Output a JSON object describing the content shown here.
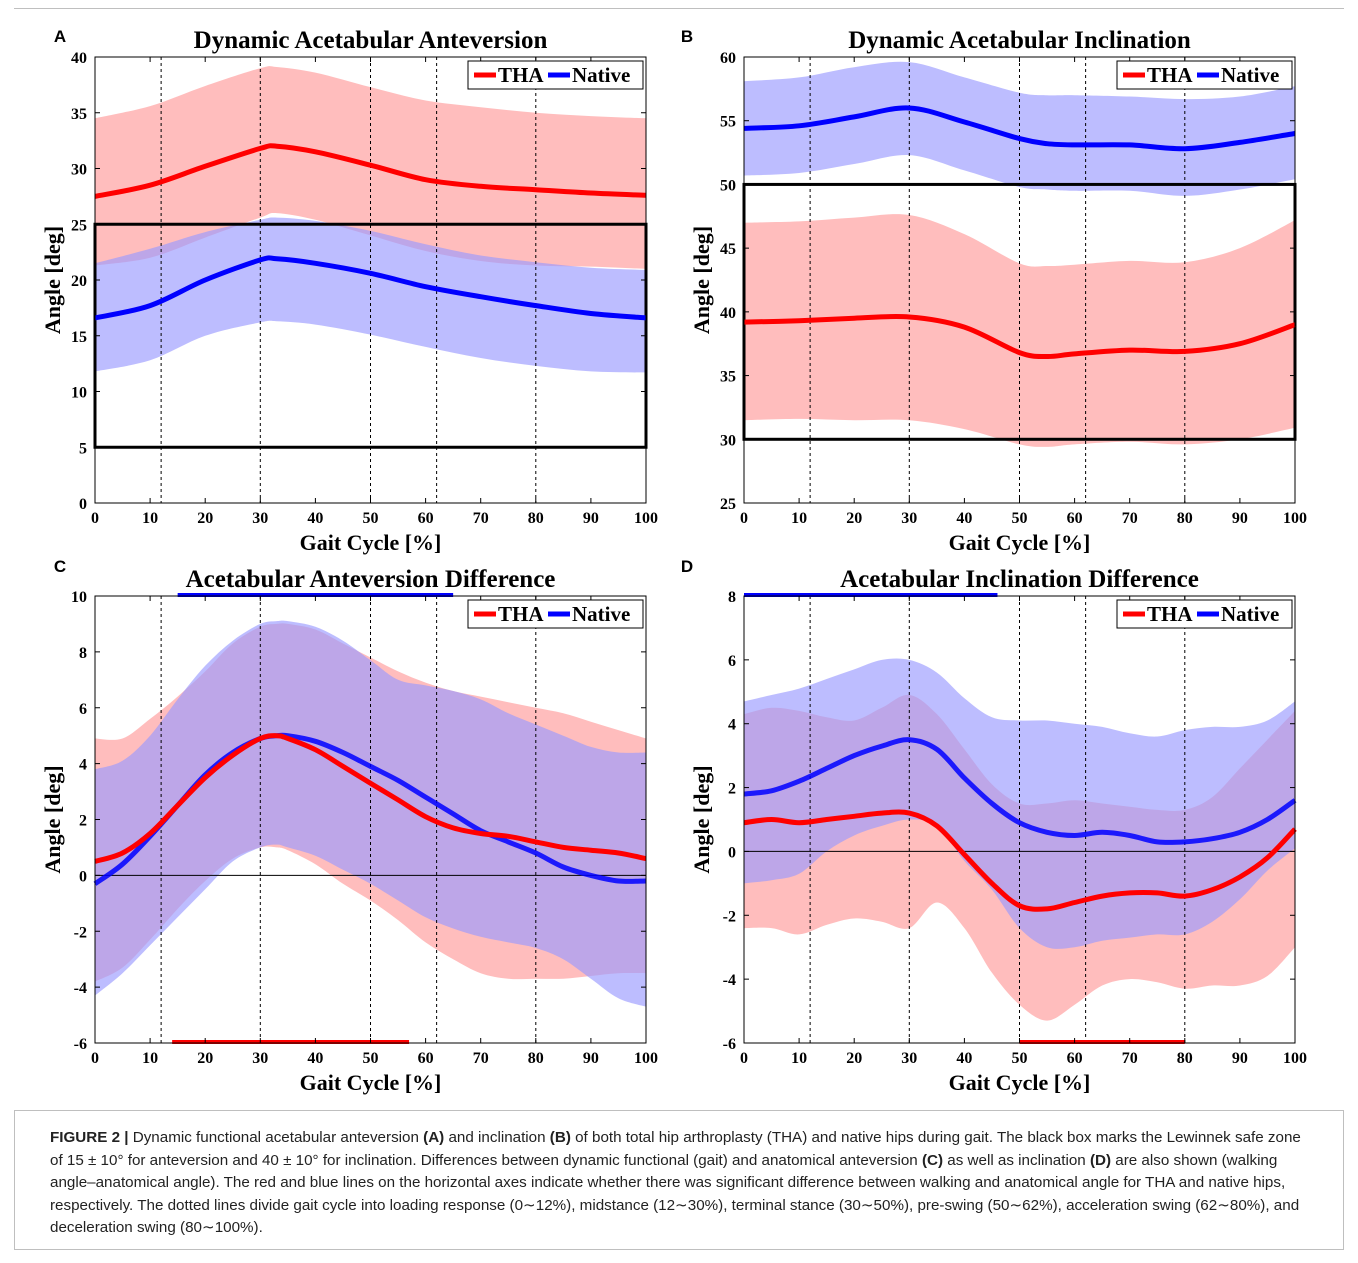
{
  "figure": {
    "colors": {
      "THA": "#ff0000",
      "Native": "#0000ff",
      "THA_band": "#ff9a9a",
      "Native_band": "#9a9aff"
    },
    "x_ticks": [
      0,
      10,
      20,
      30,
      40,
      50,
      60,
      70,
      80,
      90,
      100
    ],
    "phase_lines": [
      12,
      30,
      50,
      62,
      80
    ]
  },
  "chart_data": [
    {
      "type": "line",
      "panel": "A",
      "title": "Dynamic Acetabular Anteversion",
      "xlabel": "Gait Cycle [%]",
      "ylabel": "Angle [deg]",
      "xlim": [
        0,
        100
      ],
      "ylim": [
        0,
        40
      ],
      "y_ticks": [
        0,
        5,
        10,
        15,
        20,
        25,
        30,
        35,
        40
      ],
      "legend": "top-right",
      "safe_zone": [
        5,
        25
      ],
      "x": [
        0,
        10,
        20,
        30,
        33,
        40,
        50,
        60,
        70,
        80,
        90,
        100
      ],
      "series": [
        {
          "name": "THA",
          "values": [
            27.5,
            28.5,
            30.2,
            31.8,
            32.0,
            31.5,
            30.3,
            29.0,
            28.4,
            28.1,
            27.8,
            27.6
          ],
          "upper": [
            34.5,
            35.6,
            37.4,
            39.0,
            39.1,
            38.6,
            37.3,
            36.1,
            35.5,
            35.0,
            34.7,
            34.5
          ],
          "lower": [
            21.3,
            22.0,
            23.8,
            25.6,
            26.0,
            25.4,
            24.0,
            22.6,
            21.7,
            21.3,
            21.2,
            21.0
          ]
        },
        {
          "name": "Native",
          "values": [
            16.6,
            17.7,
            20.0,
            21.8,
            21.9,
            21.5,
            20.6,
            19.4,
            18.5,
            17.7,
            17.0,
            16.6
          ],
          "upper": [
            21.5,
            22.8,
            24.3,
            25.4,
            25.6,
            25.3,
            24.4,
            23.2,
            22.2,
            21.6,
            21.1,
            20.9
          ],
          "lower": [
            11.8,
            12.8,
            15.0,
            16.2,
            16.3,
            16.0,
            15.1,
            14.0,
            13.0,
            12.3,
            11.8,
            11.7
          ]
        }
      ]
    },
    {
      "type": "line",
      "panel": "B",
      "title": "Dynamic Acetabular Inclination",
      "xlabel": "Gait Cycle [%]",
      "ylabel": "Angle [deg]",
      "xlim": [
        0,
        100
      ],
      "ylim": [
        25,
        60
      ],
      "y_ticks": [
        25,
        30,
        35,
        40,
        45,
        50,
        55,
        60
      ],
      "legend": "top-right",
      "safe_zone": [
        30,
        50
      ],
      "x": [
        0,
        10,
        20,
        30,
        40,
        50,
        55,
        60,
        70,
        80,
        90,
        100
      ],
      "series": [
        {
          "name": "THA",
          "values": [
            39.2,
            39.3,
            39.5,
            39.6,
            38.8,
            36.8,
            36.5,
            36.7,
            37.0,
            36.9,
            37.5,
            39.0
          ],
          "upper": [
            47.0,
            47.1,
            47.4,
            47.6,
            46.1,
            43.8,
            43.6,
            43.7,
            44.0,
            43.9,
            45.0,
            47.2
          ],
          "lower": [
            31.5,
            31.6,
            31.5,
            31.5,
            30.8,
            29.6,
            29.4,
            29.6,
            29.8,
            29.6,
            30.0,
            30.9
          ]
        },
        {
          "name": "Native",
          "values": [
            54.4,
            54.6,
            55.3,
            56.0,
            54.9,
            53.6,
            53.2,
            53.1,
            53.1,
            52.8,
            53.3,
            54.0
          ],
          "upper": [
            58.1,
            58.4,
            59.2,
            59.6,
            58.4,
            57.2,
            57.0,
            57.0,
            56.9,
            56.7,
            56.9,
            57.7
          ],
          "lower": [
            50.7,
            50.9,
            51.6,
            52.3,
            51.1,
            49.8,
            49.6,
            49.5,
            49.5,
            49.1,
            49.6,
            50.4
          ]
        }
      ]
    },
    {
      "type": "line",
      "panel": "C",
      "title": "Acetabular Anteversion Difference",
      "xlabel": "Gait Cycle [%]",
      "ylabel": "Angle [deg]",
      "xlim": [
        0,
        100
      ],
      "ylim": [
        -6,
        10
      ],
      "y_ticks": [
        -6,
        -4,
        -2,
        0,
        2,
        4,
        6,
        8,
        10
      ],
      "legend": "top-right",
      "zero_line": true,
      "sig_bars": [
        {
          "series": "THA",
          "range": [
            14,
            57
          ],
          "position": "bottom"
        },
        {
          "series": "Native",
          "range": [
            15,
            65
          ],
          "position": "top"
        }
      ],
      "x": [
        0,
        5,
        10,
        15,
        20,
        25,
        30,
        33,
        35,
        40,
        45,
        50,
        55,
        60,
        65,
        70,
        75,
        80,
        85,
        90,
        95,
        100
      ],
      "series": [
        {
          "name": "THA",
          "values": [
            0.5,
            0.8,
            1.5,
            2.5,
            3.5,
            4.3,
            4.9,
            5.0,
            4.9,
            4.5,
            3.9,
            3.3,
            2.7,
            2.1,
            1.7,
            1.5,
            1.4,
            1.2,
            1.0,
            0.9,
            0.8,
            0.6
          ],
          "upper": [
            4.9,
            4.9,
            5.6,
            6.4,
            7.3,
            8.3,
            8.9,
            9.0,
            9.0,
            8.8,
            8.3,
            7.8,
            7.3,
            6.9,
            6.6,
            6.4,
            6.2,
            6.0,
            5.8,
            5.5,
            5.2,
            4.9
          ],
          "lower": [
            -3.8,
            -3.3,
            -2.3,
            -1.2,
            -0.2,
            0.6,
            1.0,
            1.0,
            0.9,
            0.4,
            -0.3,
            -0.9,
            -1.6,
            -2.4,
            -3.0,
            -3.5,
            -3.7,
            -3.7,
            -3.7,
            -3.6,
            -3.5,
            -3.5
          ]
        },
        {
          "name": "Native",
          "values": [
            -0.3,
            0.4,
            1.4,
            2.5,
            3.6,
            4.4,
            4.9,
            5.0,
            5.0,
            4.8,
            4.4,
            3.9,
            3.4,
            2.8,
            2.2,
            1.6,
            1.2,
            0.8,
            0.3,
            0.0,
            -0.2,
            -0.2
          ],
          "upper": [
            3.8,
            4.1,
            5.0,
            6.3,
            7.5,
            8.4,
            9.0,
            9.1,
            9.1,
            8.9,
            8.4,
            7.7,
            7.0,
            6.8,
            6.6,
            6.3,
            5.8,
            5.4,
            5.0,
            4.6,
            4.4,
            4.4
          ],
          "lower": [
            -4.3,
            -3.5,
            -2.5,
            -1.5,
            -0.5,
            0.5,
            1.0,
            1.1,
            1.0,
            0.7,
            0.2,
            -0.3,
            -0.9,
            -1.5,
            -1.9,
            -2.2,
            -2.4,
            -2.6,
            -3.0,
            -3.7,
            -4.4,
            -4.7
          ]
        }
      ]
    },
    {
      "type": "line",
      "panel": "D",
      "title": "Acetabular Inclination Difference",
      "xlabel": "Gait Cycle [%]",
      "ylabel": "Angle [deg]",
      "xlim": [
        0,
        100
      ],
      "ylim": [
        -6,
        8
      ],
      "y_ticks": [
        -6,
        -4,
        -2,
        0,
        2,
        4,
        6,
        8
      ],
      "legend": "top-right",
      "zero_line": true,
      "sig_bars": [
        {
          "series": "THA",
          "range": [
            50,
            80
          ],
          "position": "bottom"
        },
        {
          "series": "Native",
          "range": [
            0,
            46
          ],
          "position": "top"
        }
      ],
      "x": [
        0,
        5,
        10,
        15,
        20,
        25,
        30,
        35,
        40,
        45,
        50,
        55,
        60,
        65,
        70,
        75,
        80,
        85,
        90,
        95,
        100
      ],
      "series": [
        {
          "name": "THA",
          "values": [
            0.9,
            1.0,
            0.9,
            1.0,
            1.1,
            1.2,
            1.2,
            0.8,
            -0.1,
            -1.0,
            -1.7,
            -1.8,
            -1.6,
            -1.4,
            -1.3,
            -1.3,
            -1.4,
            -1.2,
            -0.8,
            -0.2,
            0.7
          ],
          "upper": [
            4.3,
            4.5,
            4.4,
            4.2,
            4.1,
            4.5,
            4.9,
            4.3,
            3.2,
            2.1,
            1.5,
            1.5,
            1.6,
            1.5,
            1.4,
            1.3,
            1.3,
            1.7,
            2.6,
            3.5,
            4.4
          ],
          "lower": [
            -2.4,
            -2.4,
            -2.6,
            -2.3,
            -2.1,
            -2.2,
            -2.4,
            -1.6,
            -2.4,
            -3.8,
            -4.8,
            -5.3,
            -4.8,
            -4.2,
            -4.0,
            -4.1,
            -4.3,
            -4.2,
            -4.2,
            -3.9,
            -3.0
          ]
        },
        {
          "name": "Native",
          "values": [
            1.8,
            1.9,
            2.2,
            2.6,
            3.0,
            3.3,
            3.5,
            3.2,
            2.3,
            1.5,
            0.9,
            0.6,
            0.5,
            0.6,
            0.5,
            0.3,
            0.3,
            0.4,
            0.6,
            1.0,
            1.6
          ],
          "upper": [
            4.7,
            4.9,
            5.1,
            5.4,
            5.7,
            6.0,
            6.0,
            5.6,
            4.8,
            4.2,
            4.1,
            4.1,
            4.0,
            3.9,
            3.7,
            3.6,
            3.8,
            3.9,
            3.9,
            4.1,
            4.7
          ],
          "lower": [
            -1.0,
            -0.9,
            -0.7,
            0.0,
            0.5,
            0.8,
            1.0,
            0.8,
            -0.3,
            -1.2,
            -2.4,
            -3.0,
            -3.0,
            -2.8,
            -2.7,
            -2.6,
            -2.6,
            -2.2,
            -1.5,
            -0.6,
            0.1
          ]
        }
      ]
    }
  ],
  "caption": {
    "label": "FIGURE 2 |",
    "parts": [
      {
        "t": " Dynamic functional acetabular anteversion "
      },
      {
        "b": "(A)"
      },
      {
        "t": " and inclination "
      },
      {
        "b": "(B)"
      },
      {
        "t": " of both total hip arthroplasty (THA) and native hips during gait. The black box marks the Lewinnek safe zone of 15 ± 10° for anteversion and 40 ± 10° for inclination. Differences between dynamic functional (gait) and anatomical anteversion "
      },
      {
        "b": "(C)"
      },
      {
        "t": " as well as inclination "
      },
      {
        "b": "(D)"
      },
      {
        "t": " are also shown (walking angle–anatomical angle). The red and blue lines on the horizontal axes indicate whether there was significant difference between walking and anatomical angle for THA and native hips, respectively. The dotted lines divide gait cycle into loading response (0∼12%), midstance (12∼30%), terminal stance (30∼50%), pre-swing (50∼62%), acceleration swing (62∼80%), and deceleration swing (80∼100%)."
      }
    ]
  }
}
